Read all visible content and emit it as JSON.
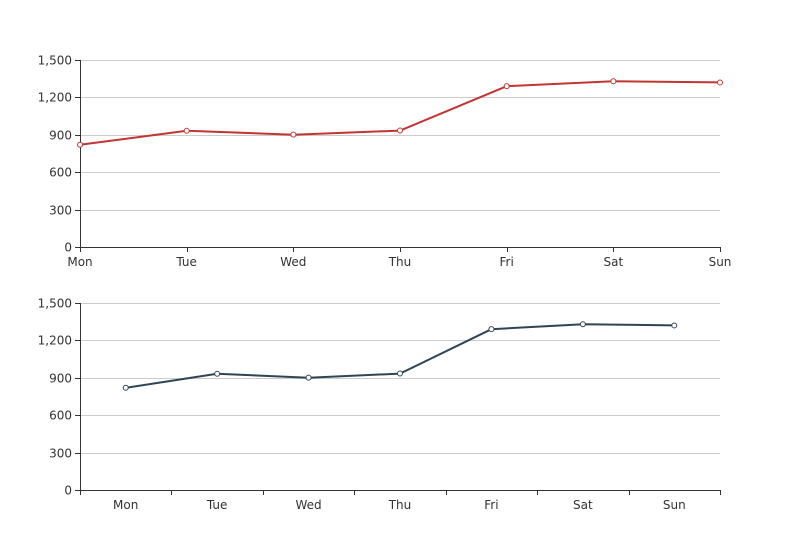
{
  "chart_data": [
    {
      "type": "line",
      "categories": [
        "Mon",
        "Tue",
        "Wed",
        "Thu",
        "Fri",
        "Sat",
        "Sun"
      ],
      "series": [
        {
          "values": [
            820,
            932,
            901,
            934,
            1290,
            1330,
            1320
          ],
          "color": "#c23531"
        }
      ],
      "ylim": [
        0,
        1500
      ],
      "yticks": [
        "0",
        "300",
        "600",
        "900",
        "1,200",
        "1,500"
      ],
      "grid": true,
      "boundary_gap": false
    },
    {
      "type": "line",
      "categories": [
        "Mon",
        "Tue",
        "Wed",
        "Thu",
        "Fri",
        "Sat",
        "Sun"
      ],
      "series": [
        {
          "values": [
            820,
            932,
            901,
            934,
            1290,
            1330,
            1320
          ],
          "color": "#2f4554"
        }
      ],
      "ylim": [
        0,
        1500
      ],
      "yticks": [
        "0",
        "300",
        "600",
        "900",
        "1,200",
        "1,500"
      ],
      "grid": true,
      "boundary_gap": true
    }
  ]
}
